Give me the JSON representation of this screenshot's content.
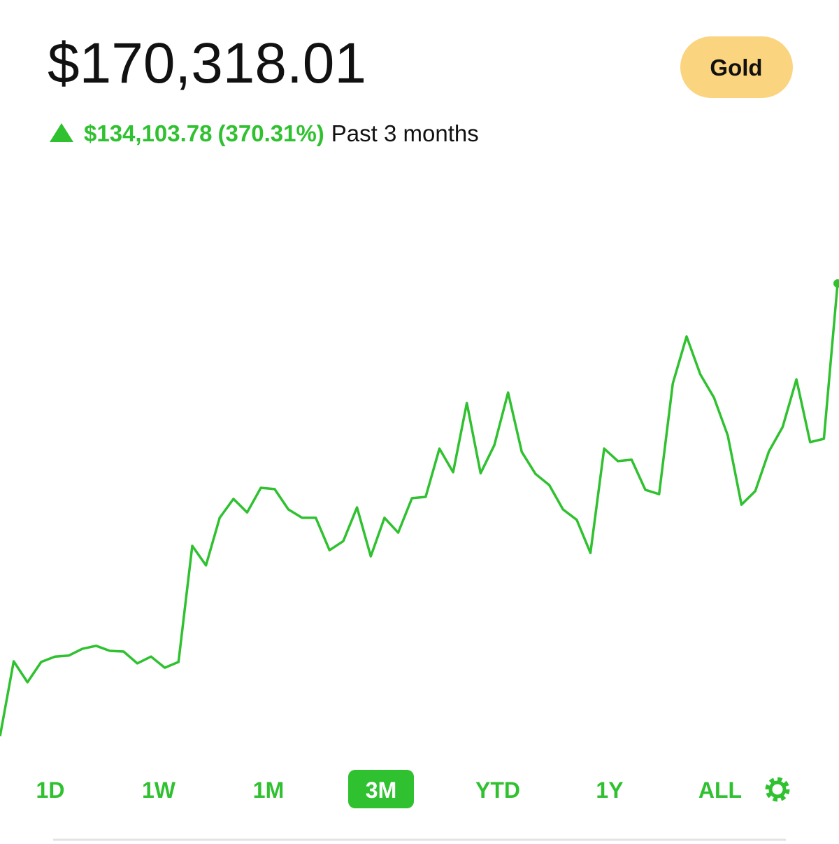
{
  "header": {
    "balance": "$170,318.01",
    "badge": "Gold",
    "change": "$134,103.78",
    "change_percent": "(370.31%)",
    "period": "Past 3 months"
  },
  "chart_data": {
    "type": "line",
    "color": "#2fc12f",
    "values": [
      36214,
      58400,
      52200,
      58200,
      59800,
      60100,
      62100,
      63000,
      61500,
      61300,
      57800,
      59800,
      56500,
      58200,
      92600,
      86800,
      100900,
      106500,
      102500,
      109800,
      109400,
      103400,
      100900,
      100900,
      91300,
      94000,
      104000,
      89500,
      100900,
      96500,
      106700,
      107100,
      121400,
      114400,
      134900,
      114100,
      122400,
      138000,
      120400,
      113900,
      110600,
      103400,
      100300,
      90500,
      121400,
      117700,
      118100,
      109200,
      107900,
      140700,
      154600,
      143400,
      136500,
      125300,
      104800,
      108800,
      120600,
      127800,
      141900,
      123300,
      124300,
      170318.01
    ]
  },
  "tabs": {
    "items": [
      "1D",
      "1W",
      "1M",
      "3M",
      "YTD",
      "1Y",
      "ALL"
    ],
    "selected": 3
  }
}
